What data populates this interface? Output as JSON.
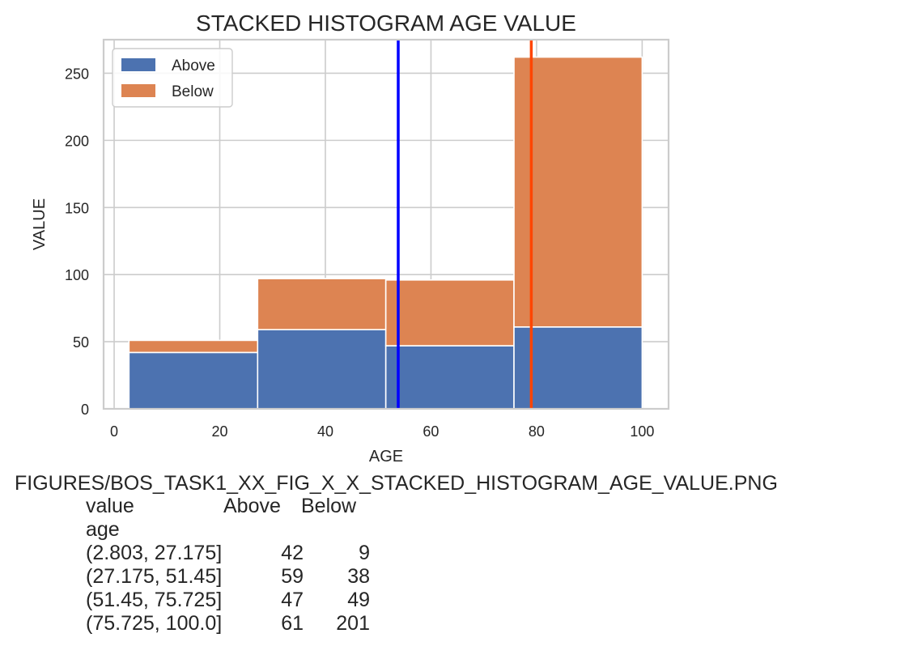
{
  "chart_data": {
    "type": "bar",
    "stacked": true,
    "title": "STACKED HISTOGRAM AGE VALUE",
    "xlabel": "AGE",
    "ylabel": "VALUE",
    "xlim": [
      -2,
      105
    ],
    "ylim": [
      0,
      275
    ],
    "xticks": [
      0,
      20,
      40,
      60,
      80,
      100
    ],
    "yticks": [
      0,
      50,
      100,
      150,
      200,
      250
    ],
    "grid": true,
    "legend_position": "top-left",
    "bins": [
      [
        2.803,
        27.175
      ],
      [
        27.175,
        51.45
      ],
      [
        51.45,
        75.725
      ],
      [
        75.725,
        100.0
      ]
    ],
    "series": [
      {
        "name": "Above",
        "color": "#4c72b0",
        "values": [
          42,
          59,
          47,
          61
        ]
      },
      {
        "name": "Below",
        "color": "#dd8452",
        "values": [
          9,
          38,
          49,
          201
        ]
      }
    ],
    "vlines": [
      {
        "x": 53.8,
        "color": "#0000ff"
      },
      {
        "x": 79.0,
        "color": "#ff4500"
      }
    ]
  },
  "caption": "FIGURES/BOS_TASK1_XX_FIG_X_X_STACKED_HISTOGRAM_AGE_VALUE.PNG",
  "table": {
    "header_label": "value",
    "col1": "Above",
    "col2": "Below",
    "index_name": "age",
    "rows": [
      {
        "label": "(2.803, 27.175]",
        "above": "42",
        "below": "9"
      },
      {
        "label": "(27.175, 51.45]",
        "above": "59",
        "below": "38"
      },
      {
        "label": "(51.45, 75.725]",
        "above": "47",
        "below": "49"
      },
      {
        "label": "(75.725, 100.0]",
        "above": "61",
        "below": "201"
      }
    ]
  }
}
